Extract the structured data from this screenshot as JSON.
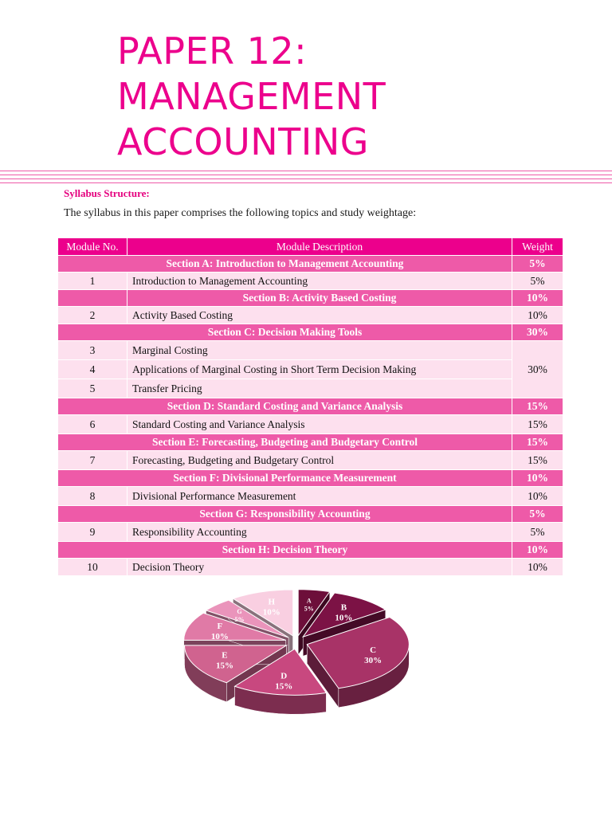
{
  "title": {
    "line1": "PAPER 12:",
    "line2": "MANAGEMENT",
    "line3": "ACCOUNTING"
  },
  "syllabus_heading": "Syllabus Structure:",
  "intro_text": "The syllabus in this paper comprises the following topics and study weightage:",
  "table": {
    "headers": {
      "module_no": "Module No.",
      "description": "Module Description",
      "weight": "Weight"
    },
    "sections": [
      {
        "title": "Section A: Introduction to Management Accounting",
        "weight": "5%",
        "rows": [
          {
            "num": "1",
            "desc": "Introduction to Management Accounting",
            "weight": "5%"
          }
        ]
      },
      {
        "title": "Section B: Activity Based Costing",
        "weight": "10%",
        "rows": [
          {
            "num": "2",
            "desc": "Activity Based Costing",
            "weight": "10%"
          }
        ]
      },
      {
        "title": "Section C: Decision Making Tools",
        "weight": "30%",
        "merged_weight": "30%",
        "rows": [
          {
            "num": "3",
            "desc": "Marginal Costing"
          },
          {
            "num": "4",
            "desc": "Applications of Marginal Costing in Short Term Decision Making"
          },
          {
            "num": "5",
            "desc": "Transfer Pricing"
          }
        ]
      },
      {
        "title": "Section D: Standard Costing and Variance Analysis",
        "weight": "15%",
        "rows": [
          {
            "num": "6",
            "desc": "Standard Costing and Variance Analysis",
            "weight": "15%"
          }
        ]
      },
      {
        "title": "Section E: Forecasting, Budgeting and Budgetary Control",
        "weight": "15%",
        "rows": [
          {
            "num": "7",
            "desc": "Forecasting, Budgeting and Budgetary Control",
            "weight": "15%"
          }
        ]
      },
      {
        "title": "Section F: Divisional Performance Measurement",
        "weight": "10%",
        "rows": [
          {
            "num": "8",
            "desc": "Divisional Performance Measurement",
            "weight": "10%"
          }
        ]
      },
      {
        "title": "Section G: Responsibility Accounting",
        "weight": "5%",
        "rows": [
          {
            "num": "9",
            "desc": "Responsibility Accounting",
            "weight": "5%"
          }
        ]
      },
      {
        "title": "Section H: Decision Theory",
        "weight": "10%",
        "rows": [
          {
            "num": "10",
            "desc": "Decision Theory",
            "weight": "10%"
          }
        ]
      }
    ]
  },
  "chart_data": {
    "type": "pie",
    "slices": [
      {
        "label": "A",
        "value": 5,
        "text": "5%",
        "color": "#6d0f3a"
      },
      {
        "label": "B",
        "value": 10,
        "text": "10%",
        "color": "#7c1245"
      },
      {
        "label": "C",
        "value": 30,
        "text": "30%",
        "color": "#a83367"
      },
      {
        "label": "D",
        "value": 15,
        "text": "15%",
        "color": "#c8487f"
      },
      {
        "label": "E",
        "value": 15,
        "text": "15%",
        "color": "#d0638f"
      },
      {
        "label": "F",
        "value": 10,
        "text": "10%",
        "color": "#e07aa6"
      },
      {
        "label": "G",
        "value": 5,
        "text": "5%",
        "color": "#ea94bb"
      },
      {
        "label": "H",
        "value": 10,
        "text": "10%",
        "color": "#f9cfe1"
      }
    ]
  }
}
